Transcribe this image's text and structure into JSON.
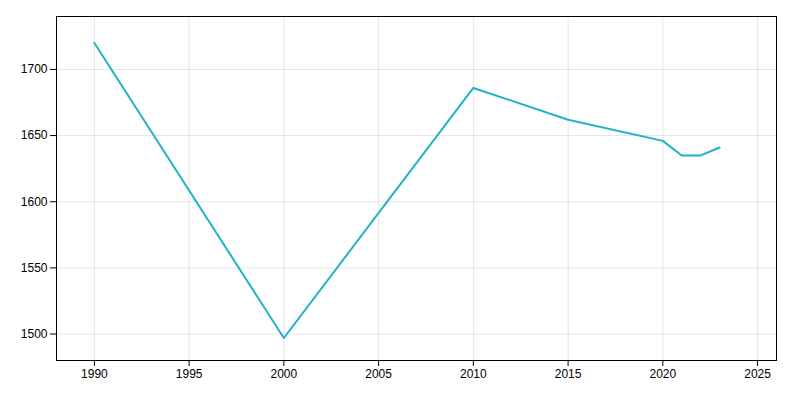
{
  "chart_data": {
    "type": "line",
    "x": [
      1990,
      2000,
      2010,
      2015,
      2020,
      2021,
      2022,
      2023
    ],
    "values": [
      1720,
      1497,
      1686,
      1662,
      1646,
      1635,
      1635,
      1641
    ],
    "color": "#20b2c8",
    "xlim": [
      1988,
      2026
    ],
    "ylim": [
      1480,
      1740
    ],
    "xticks": [
      1990,
      1995,
      2000,
      2005,
      2010,
      2015,
      2020,
      2025
    ],
    "yticks": [
      1500,
      1550,
      1600,
      1650,
      1700
    ],
    "grid": true
  }
}
